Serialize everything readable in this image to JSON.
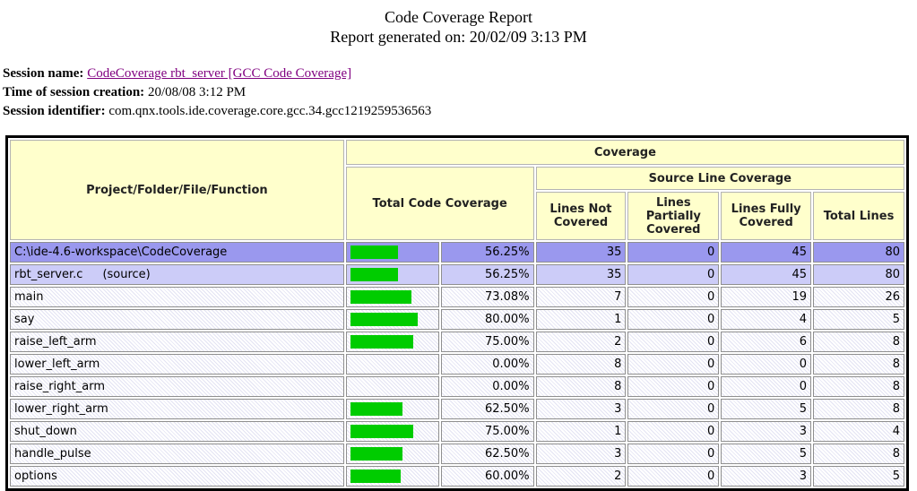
{
  "page": {
    "title": "Code Coverage Report",
    "subtitle": "Report generated on: 20/02/09 3:13 PM"
  },
  "session": {
    "name_label": "Session name:",
    "name_link": "CodeCoverage rbt_server [GCC Code Coverage]",
    "creation_label": "Time of session creation:",
    "creation_value": "20/08/08 3:12 PM",
    "identifier_label": "Session identifier:",
    "identifier_value": "com.qnx.tools.ide.coverage.core.gcc.34.gcc1219259536563"
  },
  "colors": {
    "bar_green": "#00cc00",
    "project_row": "#9a98ee",
    "file_row": "#ccccf8",
    "header_bg": "#ffffcc",
    "link_purple": "#800080"
  },
  "table": {
    "headers": {
      "project": "Project/Folder/File/Function",
      "coverage": "Coverage",
      "total_code_coverage": "Total Code Coverage",
      "source_line_coverage": "Source Line Coverage",
      "lines_not_covered": "Lines Not Covered",
      "lines_partially_covered": "Lines Partially Covered",
      "lines_fully_covered": "Lines Fully Covered",
      "total_lines": "Total Lines"
    },
    "rows": [
      {
        "name": "C:\\ide-4.6-workspace\\CodeCoverage",
        "suffix": "",
        "level": 0,
        "style": "project",
        "percent": "56.25%",
        "percent_value": 56.25,
        "not_covered": 35,
        "partially_covered": 0,
        "fully_covered": 45,
        "total": 80
      },
      {
        "name": "rbt_server.c",
        "suffix": "(source)",
        "level": 1,
        "style": "file",
        "percent": "56.25%",
        "percent_value": 56.25,
        "not_covered": 35,
        "partially_covered": 0,
        "fully_covered": 45,
        "total": 80
      },
      {
        "name": "main",
        "suffix": "",
        "level": 2,
        "style": "func",
        "percent": "73.08%",
        "percent_value": 73.08,
        "not_covered": 7,
        "partially_covered": 0,
        "fully_covered": 19,
        "total": 26
      },
      {
        "name": "say",
        "suffix": "",
        "level": 2,
        "style": "func",
        "percent": "80.00%",
        "percent_value": 80.0,
        "not_covered": 1,
        "partially_covered": 0,
        "fully_covered": 4,
        "total": 5
      },
      {
        "name": "raise_left_arm",
        "suffix": "",
        "level": 2,
        "style": "func",
        "percent": "75.00%",
        "percent_value": 75.0,
        "not_covered": 2,
        "partially_covered": 0,
        "fully_covered": 6,
        "total": 8
      },
      {
        "name": "lower_left_arm",
        "suffix": "",
        "level": 2,
        "style": "func",
        "percent": "0.00%",
        "percent_value": 0.0,
        "not_covered": 8,
        "partially_covered": 0,
        "fully_covered": 0,
        "total": 8
      },
      {
        "name": "raise_right_arm",
        "suffix": "",
        "level": 2,
        "style": "func",
        "percent": "0.00%",
        "percent_value": 0.0,
        "not_covered": 8,
        "partially_covered": 0,
        "fully_covered": 0,
        "total": 8
      },
      {
        "name": "lower_right_arm",
        "suffix": "",
        "level": 2,
        "style": "func",
        "percent": "62.50%",
        "percent_value": 62.5,
        "not_covered": 3,
        "partially_covered": 0,
        "fully_covered": 5,
        "total": 8
      },
      {
        "name": "shut_down",
        "suffix": "",
        "level": 2,
        "style": "func",
        "percent": "75.00%",
        "percent_value": 75.0,
        "not_covered": 1,
        "partially_covered": 0,
        "fully_covered": 3,
        "total": 4
      },
      {
        "name": "handle_pulse",
        "suffix": "",
        "level": 2,
        "style": "func",
        "percent": "62.50%",
        "percent_value": 62.5,
        "not_covered": 3,
        "partially_covered": 0,
        "fully_covered": 5,
        "total": 8
      },
      {
        "name": "options",
        "suffix": "",
        "level": 2,
        "style": "func",
        "percent": "60.00%",
        "percent_value": 60.0,
        "not_covered": 2,
        "partially_covered": 0,
        "fully_covered": 3,
        "total": 5
      }
    ]
  }
}
